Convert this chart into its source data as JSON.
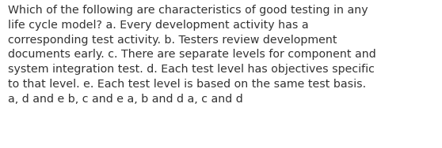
{
  "lines": [
    "Which of the following are characteristics of good testing in any",
    "life cycle model? a. Every development activity has a",
    "corresponding test activity. b. Testers review development",
    "documents early. c. There are separate levels for component and",
    "system integration test. d. Each test level has objectives specific",
    "to that level. e. Each test level is based on the same test basis.",
    "a, d and e b, c and e a, b and d a, c and d"
  ],
  "background_color": "#ffffff",
  "text_color": "#333333",
  "font_size": 10.2,
  "fig_width": 5.58,
  "fig_height": 1.88,
  "dpi": 100
}
